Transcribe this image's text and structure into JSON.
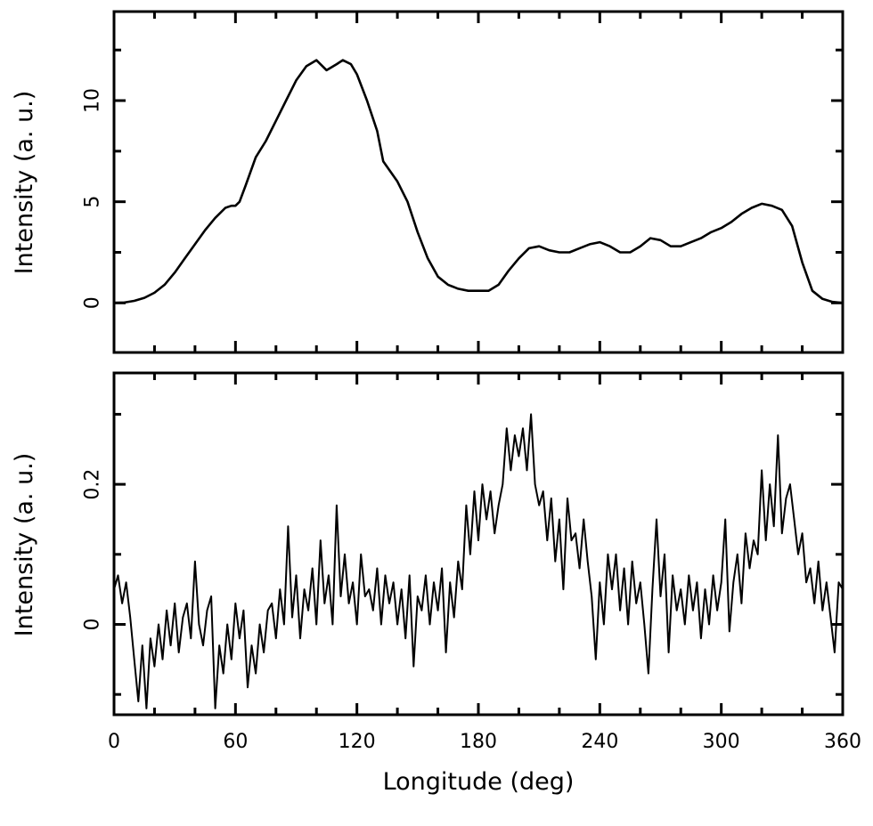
{
  "chart_data": [
    {
      "type": "line",
      "panel": "top",
      "title": "",
      "xlabel": "",
      "ylabel": "Intensity (a. u.)",
      "xlim": [
        0,
        360
      ],
      "ylim": [
        -2.45,
        14.4
      ],
      "yticks": [
        0,
        5,
        10
      ],
      "ytick_labels": [
        "0",
        "5",
        "10"
      ],
      "x": [
        0,
        5,
        10,
        15,
        20,
        25,
        30,
        35,
        40,
        45,
        50,
        55,
        58,
        60,
        62,
        65,
        70,
        75,
        80,
        85,
        90,
        95,
        100,
        105,
        110,
        113,
        117,
        120,
        125,
        130,
        133,
        140,
        145,
        150,
        155,
        160,
        165,
        170,
        175,
        180,
        185,
        190,
        195,
        200,
        205,
        210,
        215,
        220,
        225,
        230,
        235,
        240,
        245,
        250,
        255,
        260,
        265,
        270,
        275,
        280,
        285,
        290,
        295,
        300,
        305,
        310,
        315,
        320,
        325,
        330,
        335,
        340,
        345,
        350,
        355,
        360
      ],
      "y": [
        0,
        0.02,
        0.1,
        0.25,
        0.5,
        0.9,
        1.5,
        2.2,
        2.9,
        3.6,
        4.2,
        4.7,
        4.8,
        4.8,
        5.0,
        5.8,
        7.2,
        8.0,
        9.0,
        10.0,
        11.0,
        11.7,
        12.0,
        11.5,
        11.8,
        12.0,
        11.8,
        11.3,
        10.0,
        8.5,
        7.0,
        6.0,
        5.0,
        3.5,
        2.2,
        1.3,
        0.9,
        0.7,
        0.6,
        0.6,
        0.6,
        0.9,
        1.6,
        2.2,
        2.7,
        2.8,
        2.6,
        2.5,
        2.5,
        2.7,
        2.9,
        3.0,
        2.8,
        2.5,
        2.5,
        2.8,
        3.2,
        3.1,
        2.8,
        2.8,
        3.0,
        3.2,
        3.5,
        3.7,
        4.0,
        4.4,
        4.7,
        4.9,
        4.8,
        4.6,
        3.8,
        2.0,
        0.6,
        0.2,
        0.05,
        0
      ]
    },
    {
      "type": "line",
      "panel": "bottom",
      "title": "",
      "xlabel": "Longitude (deg)",
      "ylabel": "Intensity (a. u.)",
      "xlim": [
        0,
        360
      ],
      "ylim": [
        -0.129,
        0.359
      ],
      "xticks": [
        0,
        60,
        120,
        180,
        240,
        300,
        360
      ],
      "xtick_labels": [
        "0",
        "60",
        "120",
        "180",
        "240",
        "300",
        "360"
      ],
      "yticks": [
        0,
        0.2
      ],
      "ytick_labels": [
        "0",
        "0.2"
      ],
      "x_step": 2,
      "y": [
        0.05,
        0.07,
        0.03,
        0.06,
        0.01,
        -0.05,
        -0.11,
        -0.03,
        -0.12,
        -0.02,
        -0.06,
        0.0,
        -0.05,
        0.02,
        -0.03,
        0.03,
        -0.04,
        0.01,
        0.03,
        -0.02,
        0.09,
        0.0,
        -0.03,
        0.02,
        0.04,
        -0.12,
        -0.03,
        -0.07,
        0.0,
        -0.05,
        0.03,
        -0.02,
        0.02,
        -0.09,
        -0.03,
        -0.07,
        0.0,
        -0.04,
        0.02,
        0.03,
        -0.02,
        0.05,
        0.0,
        0.14,
        0.01,
        0.07,
        -0.02,
        0.05,
        0.02,
        0.08,
        0.0,
        0.12,
        0.03,
        0.07,
        0.0,
        0.17,
        0.04,
        0.1,
        0.03,
        0.06,
        0.0,
        0.1,
        0.04,
        0.05,
        0.02,
        0.08,
        0.0,
        0.07,
        0.03,
        0.06,
        0.0,
        0.05,
        -0.02,
        0.07,
        -0.06,
        0.04,
        0.02,
        0.07,
        0.0,
        0.06,
        0.02,
        0.08,
        -0.04,
        0.06,
        0.01,
        0.09,
        0.05,
        0.17,
        0.1,
        0.19,
        0.12,
        0.2,
        0.15,
        0.19,
        0.13,
        0.17,
        0.2,
        0.28,
        0.22,
        0.27,
        0.24,
        0.28,
        0.22,
        0.3,
        0.2,
        0.17,
        0.19,
        0.12,
        0.18,
        0.09,
        0.15,
        0.05,
        0.18,
        0.12,
        0.13,
        0.08,
        0.15,
        0.09,
        0.04,
        -0.05,
        0.06,
        0.0,
        0.1,
        0.05,
        0.1,
        0.02,
        0.08,
        0.0,
        0.09,
        0.03,
        0.06,
        0.0,
        -0.07,
        0.05,
        0.15,
        0.04,
        0.1,
        -0.04,
        0.07,
        0.02,
        0.05,
        0.0,
        0.07,
        0.02,
        0.06,
        -0.02,
        0.05,
        0.0,
        0.07,
        0.02,
        0.06,
        0.15,
        -0.01,
        0.06,
        0.1,
        0.03,
        0.13,
        0.08,
        0.12,
        0.1,
        0.22,
        0.12,
        0.2,
        0.14,
        0.27,
        0.13,
        0.18,
        0.2,
        0.15,
        0.1,
        0.13,
        0.06,
        0.08,
        0.03,
        0.09,
        0.02,
        0.06,
        0.01,
        -0.04,
        0.06,
        0.05
      ]
    }
  ]
}
